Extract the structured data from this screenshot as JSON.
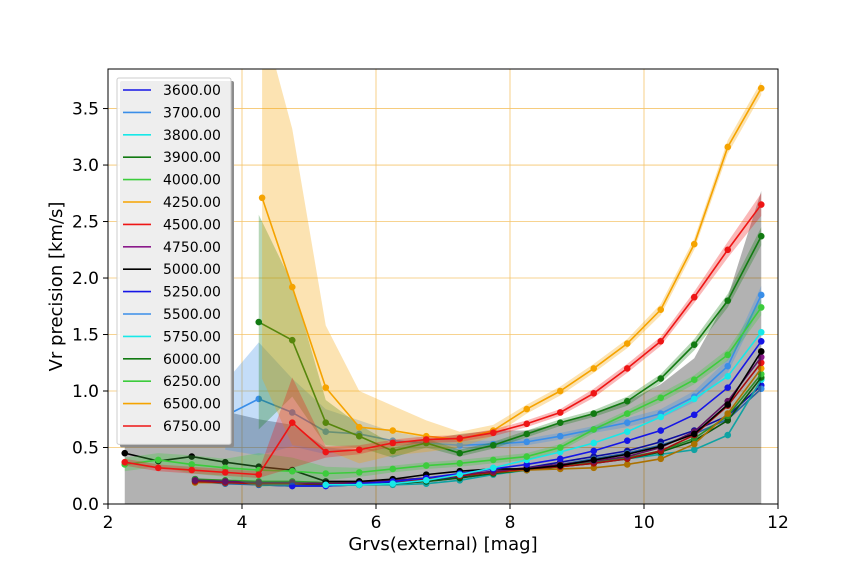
{
  "chart_data": {
    "type": "line",
    "title": "",
    "xlabel": "Grvs(external) [mag]",
    "ylabel": "Vr precision [km/s]",
    "xlim": [
      2,
      12
    ],
    "ylim": [
      0.0,
      3.85
    ],
    "xticks": [
      "2",
      "4",
      "6",
      "8",
      "10",
      "12"
    ],
    "yticks": [
      "0.0",
      "0.5",
      "1.0",
      "1.5",
      "2.0",
      "2.5",
      "3.0",
      "3.5"
    ],
    "grid": true,
    "grid_color": "#f5c46b",
    "legend_position": "top-left",
    "series": [
      {
        "name": "3600.00",
        "color": "#1515e6",
        "x": [
          3.3,
          3.75,
          4.25,
          4.75,
          5.25,
          5.75,
          6.25,
          6.75,
          7.25,
          7.75,
          8.25,
          8.75,
          9.25,
          9.75,
          10.25,
          10.75,
          11.25,
          11.75
        ],
        "y": [
          0.22,
          0.19,
          0.17,
          0.16,
          0.16,
          0.17,
          0.19,
          0.21,
          0.24,
          0.28,
          0.32,
          0.37,
          0.42,
          0.47,
          0.55,
          0.65,
          0.78,
          1.05
        ],
        "band": []
      },
      {
        "name": "3700.00",
        "color": "#3a8ee8",
        "x": [
          3.3,
          3.75,
          4.25,
          4.75,
          5.25,
          5.75,
          6.25,
          6.75,
          7.25,
          7.75,
          8.25,
          8.75,
          9.25,
          9.75,
          10.25,
          10.75,
          11.25,
          11.75
        ],
        "y": [
          0.2,
          0.18,
          0.17,
          0.16,
          0.16,
          0.17,
          0.18,
          0.2,
          0.23,
          0.27,
          0.31,
          0.35,
          0.4,
          0.45,
          0.52,
          0.62,
          0.75,
          1.02
        ],
        "band": []
      },
      {
        "name": "3800.00",
        "color": "#17e8e8",
        "x": [
          3.3,
          3.75,
          4.25,
          4.75,
          5.25,
          5.75,
          6.25,
          6.75,
          7.25,
          7.75,
          8.25,
          8.75,
          9.25,
          9.75,
          10.25,
          10.75,
          11.25,
          11.75
        ],
        "y": [
          0.2,
          0.19,
          0.18,
          0.17,
          0.17,
          0.17,
          0.17,
          0.18,
          0.21,
          0.26,
          0.3,
          0.34,
          0.37,
          0.4,
          0.44,
          0.48,
          0.61,
          1.1
        ],
        "band": []
      },
      {
        "name": "3900.00",
        "color": "#127a12",
        "x": [
          3.3,
          3.75,
          4.25,
          4.75,
          5.25,
          5.75,
          6.25,
          6.75,
          7.25,
          7.75,
          8.25,
          8.75,
          9.25,
          9.75,
          10.25,
          10.75,
          11.25,
          11.75
        ],
        "y": [
          0.21,
          0.2,
          0.19,
          0.18,
          0.17,
          0.17,
          0.18,
          0.2,
          0.23,
          0.27,
          0.3,
          0.33,
          0.36,
          0.4,
          0.46,
          0.56,
          0.74,
          1.12
        ],
        "band": []
      },
      {
        "name": "4000.00",
        "color": "#3ccc3c",
        "x": [
          3.3,
          3.75,
          4.25,
          4.75,
          5.25,
          5.75,
          6.25,
          6.75,
          7.25,
          7.75,
          8.25,
          8.75,
          9.25,
          9.75,
          10.25,
          10.75,
          11.25,
          11.75
        ],
        "y": [
          0.22,
          0.21,
          0.2,
          0.2,
          0.19,
          0.2,
          0.21,
          0.23,
          0.25,
          0.28,
          0.31,
          0.34,
          0.37,
          0.41,
          0.47,
          0.58,
          0.78,
          1.15
        ],
        "band": []
      },
      {
        "name": "4250.00",
        "color": "#f5a300",
        "x": [
          3.3,
          3.75,
          4.25,
          4.75,
          5.25,
          5.75,
          6.25,
          6.75,
          7.25,
          7.75,
          8.25,
          8.75,
          9.25,
          9.75,
          10.25,
          10.75,
          11.25,
          11.75
        ],
        "y": [
          0.19,
          0.19,
          0.18,
          0.18,
          0.18,
          0.19,
          0.2,
          0.22,
          0.25,
          0.28,
          0.3,
          0.31,
          0.32,
          0.35,
          0.4,
          0.53,
          0.8,
          1.2
        ],
        "band": []
      },
      {
        "name": "4500.00",
        "color": "#ee1515",
        "x": [
          3.3,
          3.75,
          4.25,
          4.75,
          5.25,
          5.75,
          6.25,
          6.75,
          7.25,
          7.75,
          8.25,
          8.75,
          9.25,
          9.75,
          10.25,
          10.75,
          11.25,
          11.75
        ],
        "y": [
          0.2,
          0.19,
          0.18,
          0.18,
          0.18,
          0.19,
          0.2,
          0.22,
          0.25,
          0.28,
          0.31,
          0.33,
          0.36,
          0.4,
          0.47,
          0.61,
          0.87,
          1.25
        ],
        "band": []
      },
      {
        "name": "4750.00",
        "color": "#8b1a8b",
        "x": [
          3.3,
          3.75,
          4.25,
          4.75,
          5.25,
          5.75,
          6.25,
          6.75,
          7.25,
          7.75,
          8.25,
          8.75,
          9.25,
          9.75,
          10.25,
          10.75,
          11.25,
          11.75
        ],
        "y": [
          0.21,
          0.2,
          0.19,
          0.19,
          0.18,
          0.19,
          0.21,
          0.23,
          0.26,
          0.29,
          0.32,
          0.35,
          0.38,
          0.42,
          0.5,
          0.64,
          0.91,
          1.3
        ],
        "band": []
      },
      {
        "name": "5000.00",
        "color": "#000000",
        "x": [
          2.25,
          2.75,
          3.25,
          3.75,
          4.25,
          4.75,
          5.25,
          5.75,
          6.25,
          6.75,
          7.25,
          7.75,
          8.25,
          8.75,
          9.25,
          9.75,
          10.25,
          10.75,
          11.25,
          11.75
        ],
        "y": [
          0.45,
          0.38,
          0.42,
          0.37,
          0.33,
          0.3,
          0.2,
          0.2,
          0.22,
          0.26,
          0.29,
          0.31,
          0.31,
          0.34,
          0.39,
          0.44,
          0.51,
          0.62,
          0.88,
          1.35
        ],
        "band": [
          0.55,
          0.48,
          0.5,
          0.45,
          0.42,
          0.4,
          0.3,
          0.28,
          0.28,
          0.31,
          0.33,
          0.34,
          0.34,
          0.37,
          0.42,
          0.47,
          0.55,
          0.67,
          0.95,
          1.42
        ]
      },
      {
        "name": "5250.00",
        "color": "#1515e6",
        "x": [
          4.75,
          5.25,
          5.75,
          6.25,
          6.75,
          7.25,
          7.75,
          8.25,
          8.75,
          9.25,
          9.75,
          10.25,
          10.75,
          11.25,
          11.75
        ],
        "y": [
          0.16,
          0.16,
          0.18,
          0.2,
          0.23,
          0.27,
          0.31,
          0.35,
          0.4,
          0.47,
          0.56,
          0.65,
          0.79,
          1.03,
          1.44
        ],
        "band": []
      },
      {
        "name": "5500.00",
        "color": "#3a8ee8",
        "x": [
          3.75,
          4.25,
          4.75,
          5.25,
          5.75,
          6.25,
          6.75,
          7.25,
          7.75,
          8.25,
          8.75,
          9.25,
          9.75,
          10.25,
          10.75,
          11.25,
          11.75
        ],
        "y": [
          0.78,
          0.93,
          0.81,
          0.64,
          0.62,
          0.56,
          0.54,
          0.52,
          0.53,
          0.55,
          0.6,
          0.66,
          0.72,
          0.8,
          0.95,
          1.22,
          1.85
        ],
        "band": [
          0.3,
          0.5,
          0.3,
          0.2,
          0.12,
          0.08,
          0.05,
          0.04,
          0.03,
          0.03,
          0.03,
          0.03,
          0.04,
          0.04,
          0.05,
          0.06,
          0.08
        ]
      },
      {
        "name": "5750.00",
        "color": "#17e8e8",
        "x": [
          5.25,
          5.75,
          6.25,
          6.75,
          7.25,
          7.75,
          8.25,
          8.75,
          9.25,
          9.75,
          10.25,
          10.75,
          11.25,
          11.75
        ],
        "y": [
          0.17,
          0.17,
          0.18,
          0.21,
          0.26,
          0.32,
          0.39,
          0.46,
          0.54,
          0.64,
          0.77,
          0.93,
          1.13,
          1.52
        ],
        "band": []
      },
      {
        "name": "6000.00",
        "color": "#127a12",
        "x": [
          4.25,
          4.75,
          5.25,
          5.75,
          6.25,
          6.75,
          7.25,
          7.75,
          8.25,
          8.75,
          9.25,
          9.75,
          10.25,
          10.75,
          11.25,
          11.75
        ],
        "y": [
          1.61,
          1.45,
          0.72,
          0.6,
          0.47,
          0.54,
          0.45,
          0.52,
          0.62,
          0.72,
          0.8,
          0.91,
          1.11,
          1.41,
          1.8,
          2.37
        ],
        "band": [
          0.95,
          0.5,
          0.2,
          0.1,
          0.06,
          0.04,
          0.03,
          0.03,
          0.03,
          0.03,
          0.03,
          0.04,
          0.04,
          0.05,
          0.06,
          0.08
        ]
      },
      {
        "name": "6250.00",
        "color": "#3ccc3c",
        "x": [
          2.25,
          2.75,
          3.25,
          3.75,
          4.25,
          4.75,
          5.25,
          5.75,
          6.25,
          6.75,
          7.25,
          7.75,
          8.25,
          8.75,
          9.25,
          9.75,
          10.25,
          10.75,
          11.25,
          11.75
        ],
        "y": [
          0.35,
          0.39,
          0.35,
          0.32,
          0.3,
          0.29,
          0.27,
          0.28,
          0.31,
          0.34,
          0.36,
          0.39,
          0.42,
          0.5,
          0.66,
          0.8,
          0.94,
          1.1,
          1.32,
          1.74
        ],
        "band": [
          0.06,
          0.06,
          0.08,
          0.08,
          0.15,
          0.12,
          0.06,
          0.04,
          0.03,
          0.03,
          0.03,
          0.03,
          0.03,
          0.03,
          0.03,
          0.03,
          0.04,
          0.04,
          0.05,
          0.07
        ]
      },
      {
        "name": "6500.00",
        "color": "#f5a300",
        "x": [
          4.3,
          4.75,
          5.25,
          5.75,
          6.25,
          6.75,
          7.25,
          7.75,
          8.25,
          8.75,
          9.25,
          9.75,
          10.25,
          10.75,
          11.25,
          11.75
        ],
        "y": [
          2.71,
          1.92,
          1.03,
          0.68,
          0.65,
          0.6,
          0.57,
          0.65,
          0.84,
          1.0,
          1.2,
          1.42,
          1.72,
          2.3,
          3.16,
          3.68
        ],
        "band": [
          1.6,
          1.4,
          0.55,
          0.32,
          0.22,
          0.14,
          0.07,
          0.05,
          0.04,
          0.04,
          0.04,
          0.04,
          0.05,
          0.05,
          0.06,
          0.06
        ]
      },
      {
        "name": "6750.00",
        "color": "#ee1515",
        "x": [
          2.25,
          2.75,
          3.25,
          3.75,
          4.25,
          4.75,
          5.25,
          5.75,
          6.25,
          6.75,
          7.25,
          7.75,
          8.25,
          8.75,
          9.25,
          9.75,
          10.25,
          10.75,
          11.25,
          11.75
        ],
        "y": [
          0.37,
          0.32,
          0.3,
          0.28,
          0.26,
          0.72,
          0.46,
          0.48,
          0.54,
          0.57,
          0.58,
          0.63,
          0.71,
          0.81,
          0.98,
          1.2,
          1.44,
          1.83,
          2.25,
          2.65
        ],
        "band": [
          0.03,
          0.03,
          0.03,
          0.03,
          0.03,
          0.4,
          0.05,
          0.04,
          0.03,
          0.03,
          0.03,
          0.03,
          0.03,
          0.03,
          0.04,
          0.04,
          0.04,
          0.05,
          0.07,
          0.1
        ]
      }
    ]
  }
}
